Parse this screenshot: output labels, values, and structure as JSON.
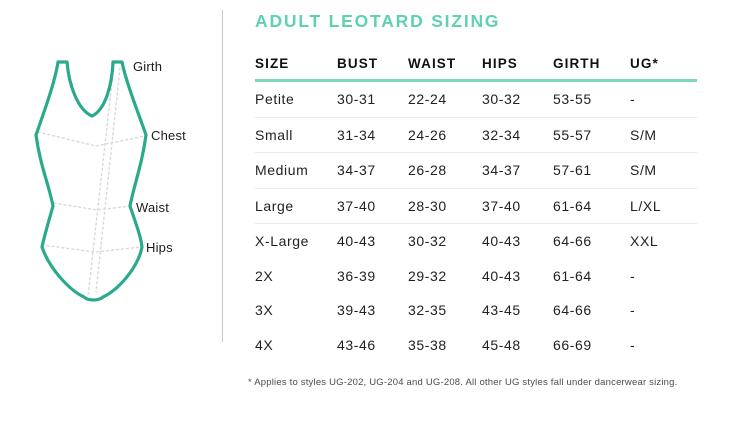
{
  "title": "ADULT LEOTARD SIZING",
  "diagram": {
    "outline_color": "#2aa98c",
    "guide_color": "#d9d9d9",
    "labels": {
      "girth": "Girth",
      "chest": "Chest",
      "waist": "Waist",
      "hips": "Hips"
    }
  },
  "table": {
    "columns": [
      "SIZE",
      "BUST",
      "WAIST",
      "HIPS",
      "GIRTH",
      "UG*"
    ],
    "rows": [
      [
        "Petite",
        "30-31",
        "22-24",
        "30-32",
        "53-55",
        "-"
      ],
      [
        "Small",
        "31-34",
        "24-26",
        "32-34",
        "55-57",
        "S/M"
      ],
      [
        "Medium",
        "34-37",
        "26-28",
        "34-37",
        "57-61",
        "S/M"
      ],
      [
        "Large",
        "37-40",
        "28-30",
        "37-40",
        "61-64",
        "L/XL"
      ],
      [
        "X-Large",
        "40-43",
        "30-32",
        "40-43",
        "64-66",
        "XXL"
      ],
      [
        "2X",
        "36-39",
        "29-32",
        "40-43",
        "61-64",
        "-"
      ],
      [
        "3X",
        "39-43",
        "32-35",
        "43-45",
        "64-66",
        "-"
      ],
      [
        "4X",
        "43-46",
        "35-38",
        "45-48",
        "66-69",
        "-"
      ]
    ]
  },
  "footnote": "* Applies to styles UG-202, UG-204 and UG-208. All other UG styles fall under dancerwear sizing.",
  "colors": {
    "accent_title": "#5ed1b2",
    "header_rule": "#7ad8bc",
    "row_divider": "#e9e9e9",
    "separator_line": "#c9c9c9",
    "leotard_outline": "#2aa98c",
    "guide_dashes": "#d9d9d9"
  }
}
